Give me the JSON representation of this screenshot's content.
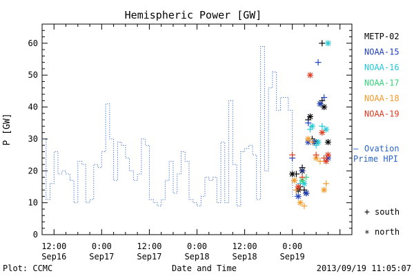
{
  "chart_data": {
    "type": "line",
    "title": "Hemispheric Power [GW]",
    "ylabel": "P [GW]",
    "xlabel": "Date and Time",
    "ylim": [
      0,
      66
    ],
    "yticks": [
      0,
      10,
      20,
      30,
      40,
      50,
      60
    ],
    "xlim_hours": [
      -3,
      75
    ],
    "x_origin": "2013-09-16 12:00",
    "xticks": [
      {
        "h": 0,
        "time": "12:00",
        "date": "Sep16"
      },
      {
        "h": 12,
        "time": "0:00",
        "date": "Sep17"
      },
      {
        "h": 24,
        "time": "12:00",
        "date": "Sep17"
      },
      {
        "h": 36,
        "time": "0:00",
        "date": "Sep18"
      },
      {
        "h": 48,
        "time": "12:00",
        "date": "Sep18"
      },
      {
        "h": 60,
        "time": "0:00",
        "date": "Sep19"
      }
    ],
    "minor_hours": 3,
    "ovation": {
      "name": "Ovation Prime HPI",
      "color": "#2b63c8",
      "step_hours": 1,
      "values": [
        30,
        30,
        11,
        11,
        16,
        16,
        26,
        26,
        19,
        19,
        20,
        20,
        19,
        19,
        17,
        17,
        10,
        10,
        23,
        23,
        22,
        22,
        10,
        10,
        11,
        11,
        22,
        22,
        21,
        21,
        26,
        26,
        41,
        41,
        30,
        30,
        17,
        17,
        29,
        29,
        28,
        28,
        24,
        24,
        20,
        20,
        17,
        17,
        19,
        19,
        30,
        30,
        28,
        28,
        11,
        11,
        10,
        10,
        9,
        9,
        11,
        11,
        17,
        17,
        23,
        23,
        13,
        13,
        19,
        19,
        26,
        26,
        23,
        23,
        11,
        11,
        10,
        10,
        9,
        9,
        12,
        12,
        18,
        18,
        17,
        17,
        18,
        18,
        10,
        10,
        29,
        29,
        10,
        10,
        42,
        42,
        22,
        22,
        9,
        9,
        26,
        26,
        27,
        27,
        28,
        28,
        25,
        25,
        11,
        11,
        59,
        59,
        20,
        20,
        46,
        46,
        51,
        51,
        39,
        39,
        43,
        43,
        43,
        43,
        39,
        39,
        12,
        12,
        19
      ]
    },
    "satellites": [
      {
        "name": "METP-02",
        "color": "#000000"
      },
      {
        "name": "NOAA-15",
        "color": "#1f3fbf"
      },
      {
        "name": "NOAA-16",
        "color": "#22c8d8"
      },
      {
        "name": "NOAA-17",
        "color": "#33d27a"
      },
      {
        "name": "NOAA-18",
        "color": "#f59a28"
      },
      {
        "name": "NOAA-19",
        "color": "#e03a1e"
      }
    ],
    "series": [
      {
        "name": "METP-02",
        "hemisphere": "north",
        "points": [
          [
            60.0,
            19
          ],
          [
            61.5,
            14
          ],
          [
            62.5,
            20
          ],
          [
            63.5,
            13
          ],
          [
            64.5,
            37
          ],
          [
            66.0,
            29
          ],
          [
            67.0,
            41
          ],
          [
            68.0,
            40
          ],
          [
            69.0,
            29
          ]
        ]
      },
      {
        "name": "METP-02",
        "hemisphere": "south",
        "points": [
          [
            61.0,
            19
          ],
          [
            62.0,
            15
          ],
          [
            62.5,
            21
          ],
          [
            63.0,
            14
          ],
          [
            64.0,
            36
          ],
          [
            65.0,
            30
          ],
          [
            67.5,
            60
          ],
          [
            67.5,
            42
          ]
        ]
      },
      {
        "name": "NOAA-15",
        "hemisphere": "north",
        "points": [
          [
            61.5,
            12
          ],
          [
            63.5,
            13
          ],
          [
            64.0,
            29
          ],
          [
            65.5,
            29
          ],
          [
            67.0,
            41
          ],
          [
            69.0,
            24
          ]
        ]
      },
      {
        "name": "NOAA-15",
        "hemisphere": "south",
        "points": [
          [
            60.0,
            24
          ],
          [
            61.0,
            14
          ],
          [
            62.5,
            20
          ],
          [
            64.0,
            35
          ],
          [
            65.5,
            29
          ],
          [
            66.5,
            54
          ],
          [
            68.0,
            43
          ]
        ]
      },
      {
        "name": "NOAA-16",
        "hemisphere": "north",
        "points": [
          [
            63.0,
            16
          ],
          [
            65.0,
            34
          ],
          [
            66.5,
            29
          ],
          [
            68.5,
            33
          ],
          [
            69.0,
            60
          ]
        ]
      },
      {
        "name": "NOAA-16",
        "hemisphere": "south",
        "points": [
          [
            62.0,
            16
          ],
          [
            64.5,
            33
          ],
          [
            66.0,
            28
          ],
          [
            67.5,
            34
          ]
        ]
      },
      {
        "name": "NOAA-17",
        "hemisphere": "north",
        "points": [
          [
            62.5,
            17
          ]
        ]
      },
      {
        "name": "NOAA-17",
        "hemisphere": "south",
        "points": [
          [
            63.5,
            18
          ]
        ]
      },
      {
        "name": "NOAA-18",
        "hemisphere": "north",
        "points": [
          [
            60.5,
            17
          ],
          [
            62.0,
            10
          ],
          [
            64.0,
            30
          ],
          [
            66.0,
            24
          ],
          [
            68.0,
            14
          ]
        ]
      },
      {
        "name": "NOAA-18",
        "hemisphere": "south",
        "points": [
          [
            61.0,
            14
          ],
          [
            63.0,
            9
          ],
          [
            65.0,
            29
          ],
          [
            67.0,
            23
          ],
          [
            68.5,
            16
          ]
        ]
      },
      {
        "name": "NOAA-19",
        "hemisphere": "north",
        "points": [
          [
            61.5,
            15
          ],
          [
            64.5,
            50
          ],
          [
            67.5,
            32
          ],
          [
            68.5,
            23
          ],
          [
            69.0,
            25
          ]
        ]
      },
      {
        "name": "NOAA-19",
        "hemisphere": "south",
        "points": [
          [
            60.0,
            25
          ],
          [
            62.5,
            18
          ],
          [
            66.0,
            25
          ],
          [
            68.0,
            24
          ]
        ]
      }
    ],
    "legend_placement": "right",
    "symbol_legend": {
      "south_symbol": "+",
      "south_label": "south",
      "north_symbol": "*",
      "north_label": "north"
    },
    "footer_left": "Plot: CCMC",
    "footer_right": "2013/09/19 11:05:07",
    "grid": false
  }
}
